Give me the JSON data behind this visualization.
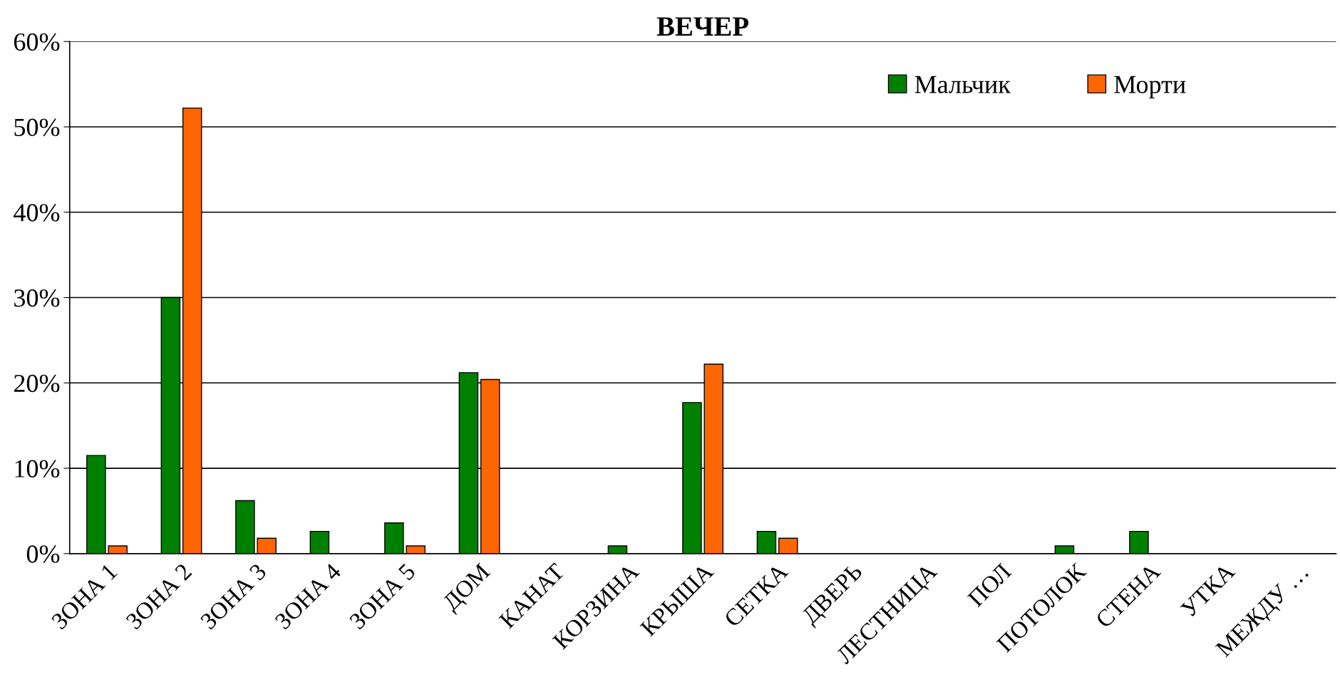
{
  "chart_data": {
    "type": "bar",
    "title": "ВЕЧЕР",
    "categories": [
      "ЗОНА 1",
      "ЗОНА 2",
      "ЗОНА 3",
      "ЗОНА 4",
      "ЗОНА 5",
      "ДОМ",
      "КАНАТ",
      "КОРЗИНА",
      "КРЫША",
      "СЕТКА",
      "ДВЕРЬ",
      "ЛЕСТНИЦА",
      "ПОЛ",
      "ПОТОЛОК",
      "СТЕНА",
      "УТКА",
      "МЕЖДУ …"
    ],
    "series": [
      {
        "name": "Мальчик",
        "color": "#008000",
        "values": [
          11.5,
          30.0,
          6.2,
          2.6,
          3.6,
          21.2,
          null,
          0.9,
          17.7,
          2.6,
          null,
          null,
          null,
          0.9,
          2.6,
          null,
          null
        ]
      },
      {
        "name": "Морти",
        "color": "#ff6600",
        "values": [
          0.9,
          52.2,
          1.8,
          null,
          0.9,
          20.4,
          null,
          null,
          22.2,
          1.8,
          null,
          null,
          null,
          null,
          null,
          null,
          null
        ]
      }
    ],
    "ylim": [
      0,
      60
    ],
    "yticks": [
      {
        "value": 0,
        "label": "0%"
      },
      {
        "value": 10,
        "label": "10%"
      },
      {
        "value": 20,
        "label": "20%"
      },
      {
        "value": 30,
        "label": "30%"
      },
      {
        "value": 40,
        "label": "40%"
      },
      {
        "value": 50,
        "label": "50%"
      },
      {
        "value": 60,
        "label": "60%"
      }
    ],
    "grid": "y",
    "legend": "top right"
  }
}
